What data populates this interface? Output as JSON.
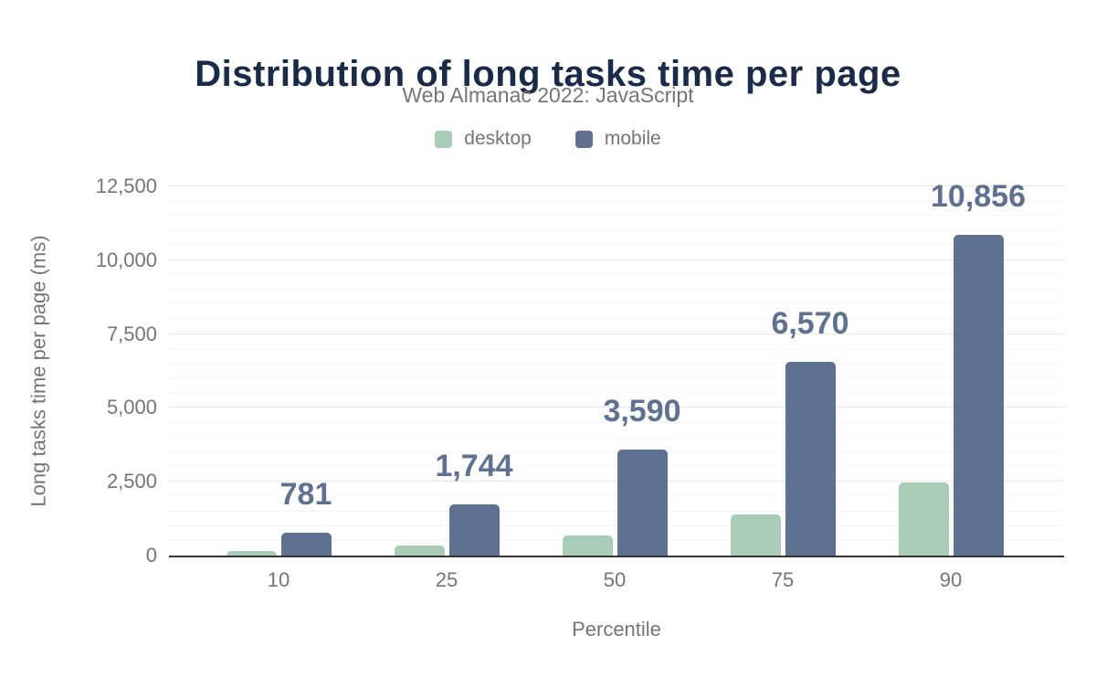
{
  "header": {
    "title": "Distribution of long tasks time per page",
    "subtitle": "Web Almanac 2022: JavaScript"
  },
  "legend": {
    "items": [
      {
        "label": "desktop",
        "color": "#a9ccb8"
      },
      {
        "label": "mobile",
        "color": "#5e7190"
      }
    ]
  },
  "chart_data": {
    "type": "bar",
    "title": "Distribution of long tasks time per page",
    "subtitle": "Web Almanac 2022: JavaScript",
    "categories": [
      "10",
      "25",
      "50",
      "75",
      "90"
    ],
    "xlabel": "Percentile",
    "ylabel": "Long tasks time per page (ms)",
    "ylim": [
      0,
      12500
    ],
    "ytick_step": 2500,
    "minor_gridline_step": 500,
    "yticks": [
      "0",
      "2,500",
      "5,000",
      "7,500",
      "10,000",
      "12,500"
    ],
    "grid": true,
    "legend_position": "top",
    "series": [
      {
        "name": "desktop",
        "color": "#a9ccb8",
        "values": [
          150,
          340,
          680,
          1390,
          2480
        ],
        "data_labels": null
      },
      {
        "name": "mobile",
        "color": "#5e7190",
        "values": [
          781,
          1744,
          3590,
          6570,
          10856
        ],
        "data_labels": [
          "781",
          "1,744",
          "3,590",
          "6,570",
          "10,856"
        ]
      }
    ]
  },
  "colors": {
    "background": "#ffffff",
    "title_text": "#1a2b49",
    "muted_text": "#757575",
    "data_label_text": "#5e7190",
    "axis_line": "#333333",
    "gridline_major": "#e7e7e7",
    "gridline_minor": "#f5f5f5"
  }
}
